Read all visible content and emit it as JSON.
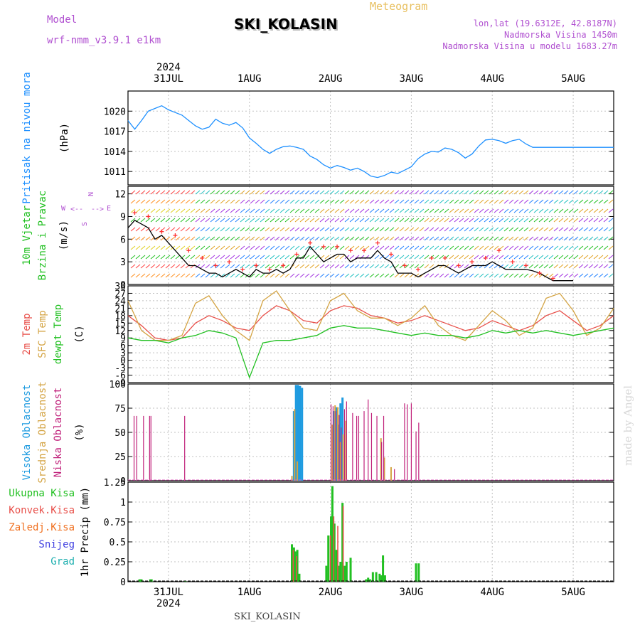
{
  "header": {
    "model_label": "Model",
    "model_name": "wrf-nmm_v3.9.1  e1km",
    "title": "SKI_KOLASIN",
    "meteogram_label": "Meteogram",
    "lonlat": "lon,lat (19.6312E, 42.8187N)",
    "elevation": "Nadmorska Visina 1450m",
    "model_elevation": "Nadmorska Visina u modelu 1683.27m",
    "watermark": "made by Angel",
    "footer_station": "SKI_KOLASIN"
  },
  "colors": {
    "pressure": "#1e90ff",
    "temp2m": "#e8504a",
    "sfc_temp": "#d4a444",
    "dewpoint": "#22c022",
    "cloud_high": "#1e9be0",
    "cloud_mid": "#d4a444",
    "cloud_low": "#c0207a",
    "precip_total": "#22c022",
    "precip_conv": "#e8504a",
    "precip_frz": "#f07020",
    "precip_snow": "#4040e0",
    "precip_grad": "#20b0b0",
    "grid": "#c0c0c0"
  },
  "chart_data": [
    {
      "type": "line",
      "panel": "pressure",
      "ylabel_lines": [
        "Pritisak na nivou mora",
        "(hPa)"
      ],
      "ylim": [
        1009,
        1023
      ],
      "yticks": [
        1011,
        1014,
        1017,
        1020
      ],
      "x_start": "2024-07-30T12:00",
      "x_end": "2024-08-05T12:00",
      "date_ticks": [
        "31JUL",
        "1AUG",
        "2AUG",
        "3AUG",
        "4AUG",
        "5AUG"
      ],
      "year_label": "2024",
      "series": [
        {
          "x": [
            0,
            2,
            4,
            6,
            8,
            10,
            12,
            14,
            16,
            18,
            20,
            22,
            24,
            26,
            28,
            30,
            32,
            34,
            36,
            38,
            40,
            42,
            44,
            46,
            48,
            50,
            52,
            54,
            56,
            58,
            60,
            62,
            64,
            66,
            68,
            70,
            72,
            74,
            76,
            78,
            80,
            82,
            84,
            86,
            88,
            90,
            92,
            94,
            96,
            98,
            100,
            102,
            104,
            106,
            108,
            110,
            112,
            114,
            116,
            118,
            120,
            122,
            124,
            126,
            128,
            130,
            132,
            134,
            136,
            138,
            140,
            142,
            144
          ],
          "values": [
            1018.6,
            1017.3,
            1018.6,
            1020.0,
            1020.4,
            1020.8,
            1020.2,
            1019.8,
            1019.4,
            1018.6,
            1017.8,
            1017.3,
            1017.6,
            1018.8,
            1018.2,
            1017.9,
            1018.3,
            1017.5,
            1016.0,
            1015.2,
            1014.3,
            1013.7,
            1014.3,
            1014.7,
            1014.8,
            1014.6,
            1014.3,
            1013.3,
            1012.8,
            1012.0,
            1011.5,
            1011.9,
            1011.6,
            1011.2,
            1011.5,
            1011.0,
            1010.3,
            1010.1,
            1010.4,
            1010.9,
            1010.7,
            1011.2,
            1011.7,
            1012.9,
            1013.6,
            1014.0,
            1013.9,
            1014.5,
            1014.3,
            1013.8,
            1013.0,
            1013.6,
            1014.8,
            1015.7,
            1015.8,
            1015.6,
            1015.2,
            1015.6,
            1015.8,
            1015.1,
            1014.6,
            1014.6,
            1014.6,
            1014.6,
            1014.6,
            1014.6,
            1014.6,
            1014.6,
            1014.6,
            1014.6,
            1014.6,
            1014.6,
            1014.6
          ]
        }
      ]
    },
    {
      "type": "line",
      "panel": "wind",
      "ylabel_lines": [
        "10m Vjetar",
        "Brzina i Pravac",
        "(m/s)"
      ],
      "compass": [
        "N",
        "W",
        "<--",
        "-->",
        "E",
        "S"
      ],
      "ylim": [
        0,
        13
      ],
      "yticks": [
        0,
        3,
        6,
        9,
        12
      ],
      "series": [
        {
          "name": "speed",
          "x": [
            0,
            2,
            4,
            6,
            8,
            10,
            12,
            14,
            16,
            18,
            20,
            22,
            24,
            26,
            28,
            30,
            32,
            34,
            36,
            38,
            40,
            42,
            44,
            46,
            48,
            50,
            52,
            54,
            56,
            58,
            60,
            62,
            64,
            66,
            68,
            70,
            72,
            74,
            76,
            78,
            80,
            82,
            84,
            86,
            88,
            90,
            92,
            94,
            96,
            98,
            100,
            102,
            104,
            106,
            108,
            110,
            112,
            114,
            116,
            118,
            120,
            122,
            124,
            126,
            128,
            130,
            132
          ],
          "values": [
            7.5,
            8.5,
            8.0,
            7.5,
            6.0,
            6.5,
            5.5,
            4.5,
            3.5,
            2.5,
            2.5,
            2.0,
            1.5,
            1.5,
            1.0,
            1.5,
            2.0,
            1.5,
            1.0,
            2.0,
            1.5,
            1.5,
            2.0,
            1.5,
            2.0,
            3.5,
            3.5,
            5.0,
            4.0,
            3.0,
            3.5,
            4.0,
            4.0,
            3.0,
            3.5,
            3.5,
            3.5,
            4.5,
            3.5,
            3.0,
            1.5,
            1.5,
            1.5,
            1.0,
            1.5,
            2.0,
            2.5,
            2.5,
            2.0,
            1.5,
            2.0,
            2.5,
            2.5,
            2.5,
            3.0,
            2.5,
            2.0,
            2.0,
            2.0,
            2.0,
            1.8,
            1.5,
            1.0,
            0.5,
            0.5,
            0.5,
            0.5
          ]
        },
        {
          "name": "gust",
          "x": [
            2,
            6,
            10,
            14,
            18,
            22,
            26,
            30,
            34,
            38,
            42,
            46,
            50,
            54,
            58,
            62,
            66,
            70,
            74,
            78,
            82,
            86,
            90,
            94,
            98,
            102,
            106,
            110,
            114,
            118,
            122,
            126
          ],
          "values": [
            9.5,
            9.0,
            7.0,
            6.5,
            4.5,
            3.5,
            2.5,
            3.0,
            2.0,
            2.5,
            2.0,
            2.5,
            4.0,
            5.5,
            5.0,
            5.0,
            4.5,
            4.5,
            5.5,
            4.0,
            2.5,
            2.0,
            3.5,
            3.5,
            2.5,
            3.0,
            3.5,
            4.5,
            3.0,
            2.5,
            1.5,
            0.8
          ]
        }
      ]
    },
    {
      "type": "line",
      "panel": "temperature",
      "ylabel_lines": [
        "2m Temp",
        "SFC Temp",
        "dewpt Temp",
        "(C)"
      ],
      "ylim": [
        -9,
        30
      ],
      "yticks": [
        -9,
        -6,
        -3,
        0,
        3,
        6,
        9,
        12,
        15,
        18,
        21,
        24,
        27,
        30
      ],
      "series": [
        {
          "name": "2m Temp",
          "x": [
            0,
            4,
            8,
            12,
            16,
            20,
            24,
            28,
            32,
            36,
            40,
            44,
            48,
            52,
            56,
            60,
            64,
            68,
            72,
            76,
            80,
            84,
            88,
            92,
            96,
            100,
            104,
            108,
            112,
            116,
            120,
            124,
            128,
            132,
            136,
            140,
            144
          ],
          "values": [
            18,
            14,
            9,
            8,
            9,
            15,
            18,
            16,
            13,
            12,
            18,
            22,
            20,
            16,
            15,
            20,
            22,
            21,
            18,
            17,
            15,
            16,
            18,
            16,
            14,
            12,
            13,
            16,
            14,
            12,
            14,
            18,
            20,
            16,
            12,
            14,
            18
          ]
        },
        {
          "name": "SFC Temp",
          "x": [
            0,
            4,
            8,
            12,
            16,
            20,
            24,
            28,
            32,
            36,
            40,
            44,
            48,
            52,
            56,
            60,
            64,
            68,
            72,
            76,
            80,
            84,
            88,
            92,
            96,
            100,
            104,
            108,
            112,
            116,
            120,
            124,
            128,
            132,
            136,
            140,
            144
          ],
          "values": [
            24,
            12,
            8,
            8,
            10,
            23,
            26,
            18,
            12,
            8,
            24,
            28,
            20,
            13,
            12,
            24,
            27,
            20,
            17,
            17,
            14,
            17,
            22,
            14,
            10,
            8,
            14,
            20,
            16,
            10,
            13,
            25,
            27,
            20,
            10,
            13,
            21
          ]
        },
        {
          "name": "dewpt Temp",
          "x": [
            0,
            4,
            8,
            12,
            16,
            20,
            24,
            28,
            32,
            36,
            40,
            44,
            48,
            52,
            56,
            60,
            64,
            68,
            72,
            76,
            80,
            84,
            88,
            92,
            96,
            100,
            104,
            108,
            112,
            116,
            120,
            124,
            128,
            132,
            136,
            140,
            144
          ],
          "values": [
            9,
            8,
            8,
            7,
            9,
            10,
            12,
            11,
            9,
            -7,
            7,
            8,
            8,
            9,
            10,
            13,
            14,
            13,
            13,
            12,
            11,
            10,
            11,
            10,
            10,
            9,
            10,
            12,
            11,
            12,
            11,
            12,
            11,
            10,
            11,
            12,
            13
          ]
        }
      ]
    },
    {
      "type": "bar",
      "panel": "clouds",
      "ylabel_lines": [
        "Visoka Oblacnost",
        "Srednja Oblacnost",
        "Niska Oblacnost",
        "(%)"
      ],
      "ylim": [
        0,
        100
      ],
      "yticks": [
        0,
        25,
        50,
        75,
        100
      ],
      "series": [
        {
          "name": "Visoka Oblacnost",
          "x": [
            49.2,
            49.8,
            50.4,
            51.0,
            51.6,
            61.2,
            61.8,
            62.4,
            63.0,
            63.6
          ],
          "values": [
            72,
            99,
            99,
            98,
            96,
            72,
            76,
            58,
            80,
            86
          ]
        },
        {
          "name": "Srednja Oblacnost",
          "x": [
            48.6,
            49.4,
            50.2,
            60.6,
            61.4,
            62.2,
            63.0,
            63.8,
            64.6,
            75.0,
            76.0,
            78.0
          ],
          "values": [
            5,
            74,
            20,
            58,
            78,
            76,
            40,
            48,
            62,
            44,
            24,
            14
          ]
        },
        {
          "name": "Niska Oblacnost",
          "x": [
            1.8,
            2.6,
            4.6,
            6.4,
            6.8,
            16.8,
            60.2,
            60.8,
            61.6,
            62.6,
            63.2,
            64.2,
            64.8,
            66.6,
            67.8,
            68.4,
            70.0,
            71.2,
            72.2,
            73.8,
            75.2,
            75.8,
            79.0,
            82.0,
            82.8,
            84.0,
            85.4,
            86.2
          ],
          "values": [
            67,
            67,
            67,
            67,
            67,
            67,
            79,
            77,
            72,
            68,
            55,
            74,
            82,
            70,
            67,
            67,
            72,
            84,
            70,
            67,
            40,
            67,
            12,
            80,
            79,
            80,
            51,
            60
          ]
        }
      ]
    },
    {
      "type": "bar",
      "panel": "precipitation",
      "ylabel_lines": [
        "Ukupna Kisa",
        "Konvek.Kisa",
        "Zaledj.Kisa",
        "Snijeg",
        "Grad",
        "1hr Precip (mm)"
      ],
      "ylim": [
        0,
        1.25
      ],
      "yticks": [
        0,
        0.25,
        0.5,
        0.75,
        1,
        1.25
      ],
      "series": [
        {
          "name": "Ukupna Kisa",
          "x": [
            3.4,
            4.0,
            6.6,
            7.0,
            17.0,
            48.6,
            49.2,
            49.6,
            50.2,
            50.8,
            58.8,
            59.4,
            60.2,
            60.6,
            61.2,
            61.8,
            62.4,
            63.0,
            63.6,
            64.2,
            64.8,
            66.0,
            70.6,
            71.2,
            71.8,
            72.6,
            73.6,
            74.6,
            75.2,
            75.6,
            76.2,
            85.4,
            86.2
          ],
          "values": [
            0.03,
            0.03,
            0.03,
            0.03,
            0.01,
            0.47,
            0.43,
            0.38,
            0.4,
            0.1,
            0.2,
            0.58,
            0.82,
            1.2,
            0.73,
            0.4,
            0.2,
            0.25,
            0.99,
            0.2,
            0.25,
            0.3,
            0.03,
            0.05,
            0.03,
            0.12,
            0.12,
            0.1,
            0.08,
            0.33,
            0.08,
            0.23,
            0.23
          ]
        },
        {
          "name": "Konvek.Kisa",
          "x": [
            49.0,
            50.0,
            60.0,
            61.0,
            62.2,
            63.8
          ],
          "values": [
            0.4,
            0.32,
            0.58,
            0.82,
            0.7,
            0.95
          ]
        }
      ]
    }
  ]
}
